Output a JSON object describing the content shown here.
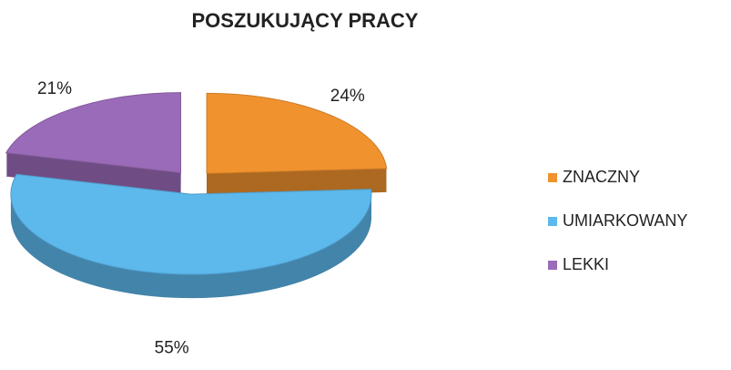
{
  "chart_data": {
    "type": "pie",
    "title": "POSZUKUJĄCY PRACY",
    "categories": [
      "ZNACZNY",
      "UMIARKOWANY",
      "LEKKI"
    ],
    "values": [
      24,
      55,
      21
    ],
    "value_labels": [
      "24%",
      "55%",
      "21%"
    ],
    "colors": [
      "#f0922e",
      "#5db8ec",
      "#9a6bb8"
    ],
    "legend": "right"
  }
}
